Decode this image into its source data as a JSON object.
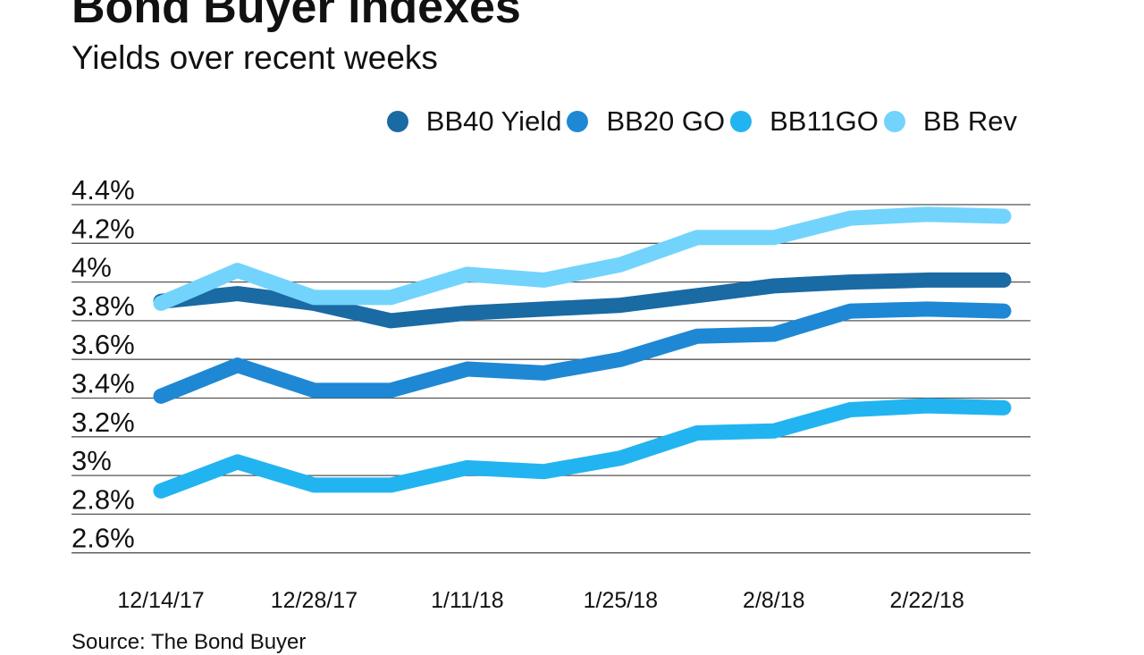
{
  "chart_data": {
    "type": "line",
    "title": "Bond Buyer indexes",
    "subtitle": "Yields over recent weeks",
    "source": "Source: The Bond Buyer",
    "x": [
      "12/14/17",
      "12/21/17",
      "12/28/17",
      "1/4/18",
      "1/11/18",
      "1/18/18",
      "1/25/18",
      "2/1/18",
      "2/8/18",
      "2/15/18",
      "2/22/18",
      "3/1/18"
    ],
    "x_tick_labels": [
      "12/14/17",
      "12/28/17",
      "1/11/18",
      "1/25/18",
      "2/8/18",
      "2/22/18"
    ],
    "y_tick_labels": [
      "4.4%",
      "4.2%",
      "4%",
      "3.8%",
      "3.6%",
      "3.4%",
      "3.2%",
      "3%",
      "2.8%",
      "2.6%"
    ],
    "y_ticks": [
      4.4,
      4.2,
      4.0,
      3.8,
      3.6,
      3.4,
      3.2,
      3.0,
      2.8,
      2.6
    ],
    "ylim": [
      2.6,
      4.4
    ],
    "grid": true,
    "legend_position": "top-right",
    "series": [
      {
        "name": "BB40 Yield",
        "color": "#1a6aa3",
        "values": [
          3.9,
          3.94,
          3.89,
          3.8,
          3.84,
          3.86,
          3.88,
          3.93,
          3.98,
          4.0,
          4.01,
          4.01
        ]
      },
      {
        "name": "BB20 GO",
        "color": "#1e88d4",
        "values": [
          3.41,
          3.57,
          3.44,
          3.44,
          3.55,
          3.53,
          3.6,
          3.72,
          3.73,
          3.85,
          3.86,
          3.85
        ]
      },
      {
        "name": "BB11GO",
        "color": "#22b4f0",
        "values": [
          2.92,
          3.07,
          2.95,
          2.95,
          3.04,
          3.02,
          3.09,
          3.22,
          3.23,
          3.34,
          3.36,
          3.35
        ]
      },
      {
        "name": "BB Rev",
        "color": "#72d4fc",
        "values": [
          3.89,
          4.06,
          3.92,
          3.92,
          4.04,
          4.01,
          4.09,
          4.23,
          4.23,
          4.33,
          4.35,
          4.34
        ]
      }
    ]
  }
}
